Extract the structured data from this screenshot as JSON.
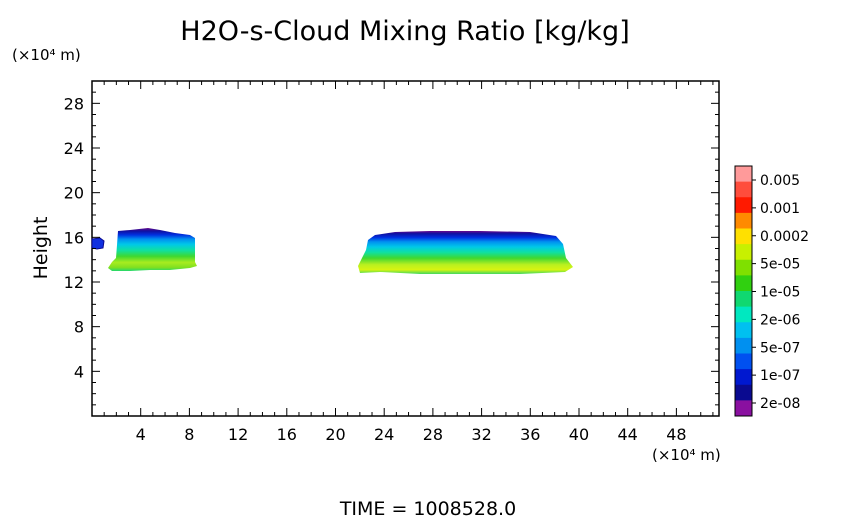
{
  "chart_data": {
    "type": "heatmap",
    "title": "H2O-s-Cloud Mixing Ratio [kg/kg]",
    "ylabel": "Height",
    "y_unit": "(×10⁴ m)",
    "x_unit": "(×10⁴ m)",
    "footer": "TIME = 1008528.0",
    "xlim": [
      0,
      51.5
    ],
    "ylim": [
      0,
      30
    ],
    "x_ticks": [
      4,
      8,
      12,
      16,
      20,
      24,
      28,
      32,
      36,
      40,
      44,
      48
    ],
    "y_ticks": [
      4,
      8,
      12,
      16,
      20,
      24,
      28
    ],
    "colorbar": {
      "levels": [
        "0.005",
        "0.001",
        "0.0002",
        "5e-05",
        "1e-05",
        "2e-06",
        "5e-07",
        "1e-07",
        "2e-08"
      ],
      "colors": [
        "#ff9a9a",
        "#ff4d3c",
        "#ff1a00",
        "#ff8a00",
        "#ffe000",
        "#c8f000",
        "#7fe000",
        "#30d010",
        "#10d870",
        "#00e8c0",
        "#00c0f0",
        "#0090f0",
        "#0050f0",
        "#0018d0",
        "#0a0a90",
        "#8a10a0"
      ]
    },
    "cloud_regions": [
      {
        "name": "small edge patch",
        "x_range": [
          0,
          1
        ],
        "y_range": [
          14.9,
          15.9
        ]
      },
      {
        "name": "left cloud",
        "x_range": [
          1.6,
          9.1
        ],
        "y_range": [
          13.0,
          16.7
        ]
      },
      {
        "name": "right cloud",
        "x_range": [
          21.9,
          39.0
        ],
        "y_range": [
          12.8,
          16.5
        ]
      }
    ]
  }
}
